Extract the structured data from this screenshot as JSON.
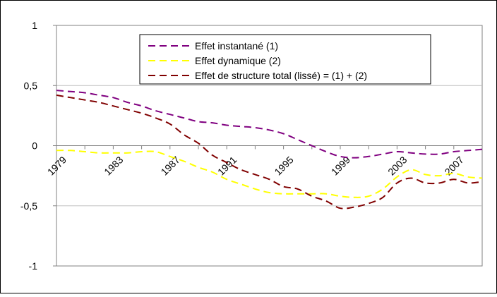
{
  "chart_data": {
    "type": "line",
    "title": "",
    "xlabel": "",
    "ylabel": "",
    "ylim": [
      -1,
      1
    ],
    "yticks": [
      1,
      0.5,
      0,
      -0.5,
      -1
    ],
    "ytick_labels": [
      "1",
      "0,5",
      "0",
      "-0,5",
      "-1"
    ],
    "xlim": [
      1979,
      2009
    ],
    "xticks": [
      1979,
      1983,
      1987,
      1991,
      1995,
      1999,
      2003,
      2007
    ],
    "xtick_labels": [
      "1979",
      "1983",
      "1987",
      "1991",
      "1995",
      "1999",
      "2003",
      "2007"
    ],
    "grid": "horizontal",
    "legend_position": "top-right",
    "x": [
      1979,
      1980,
      1981,
      1982,
      1983,
      1984,
      1985,
      1986,
      1987,
      1988,
      1989,
      1990,
      1991,
      1992,
      1993,
      1994,
      1995,
      1996,
      1997,
      1998,
      1999,
      2000,
      2001,
      2002,
      2003,
      2004,
      2005,
      2006,
      2007,
      2008,
      2009
    ],
    "series": [
      {
        "name": "Effet instantané (1)",
        "color": "#800080",
        "style": "dashed",
        "values": [
          0.46,
          0.45,
          0.44,
          0.42,
          0.4,
          0.36,
          0.33,
          0.29,
          0.26,
          0.23,
          0.2,
          0.19,
          0.17,
          0.16,
          0.15,
          0.13,
          0.1,
          0.05,
          0.0,
          -0.05,
          -0.09,
          -0.1,
          -0.09,
          -0.07,
          -0.05,
          -0.06,
          -0.07,
          -0.07,
          -0.05,
          -0.04,
          -0.03
        ]
      },
      {
        "name": "Effet dynamique (2)",
        "color": "#ffff00",
        "style": "dashed",
        "values": [
          -0.04,
          -0.04,
          -0.05,
          -0.06,
          -0.06,
          -0.06,
          -0.05,
          -0.05,
          -0.09,
          -0.13,
          -0.18,
          -0.22,
          -0.28,
          -0.32,
          -0.36,
          -0.39,
          -0.4,
          -0.4,
          -0.4,
          -0.4,
          -0.42,
          -0.43,
          -0.42,
          -0.36,
          -0.26,
          -0.2,
          -0.24,
          -0.25,
          -0.23,
          -0.26,
          -0.27
        ]
      },
      {
        "name": "Effet de structure total (lissé) = (1) + (2)",
        "color": "#800000",
        "style": "dashed",
        "values": [
          0.42,
          0.4,
          0.38,
          0.36,
          0.33,
          0.3,
          0.27,
          0.23,
          0.18,
          0.09,
          0.02,
          -0.08,
          -0.14,
          -0.2,
          -0.24,
          -0.28,
          -0.34,
          -0.36,
          -0.42,
          -0.46,
          -0.52,
          -0.51,
          -0.48,
          -0.43,
          -0.31,
          -0.27,
          -0.31,
          -0.31,
          -0.28,
          -0.31,
          -0.3
        ]
      }
    ]
  }
}
